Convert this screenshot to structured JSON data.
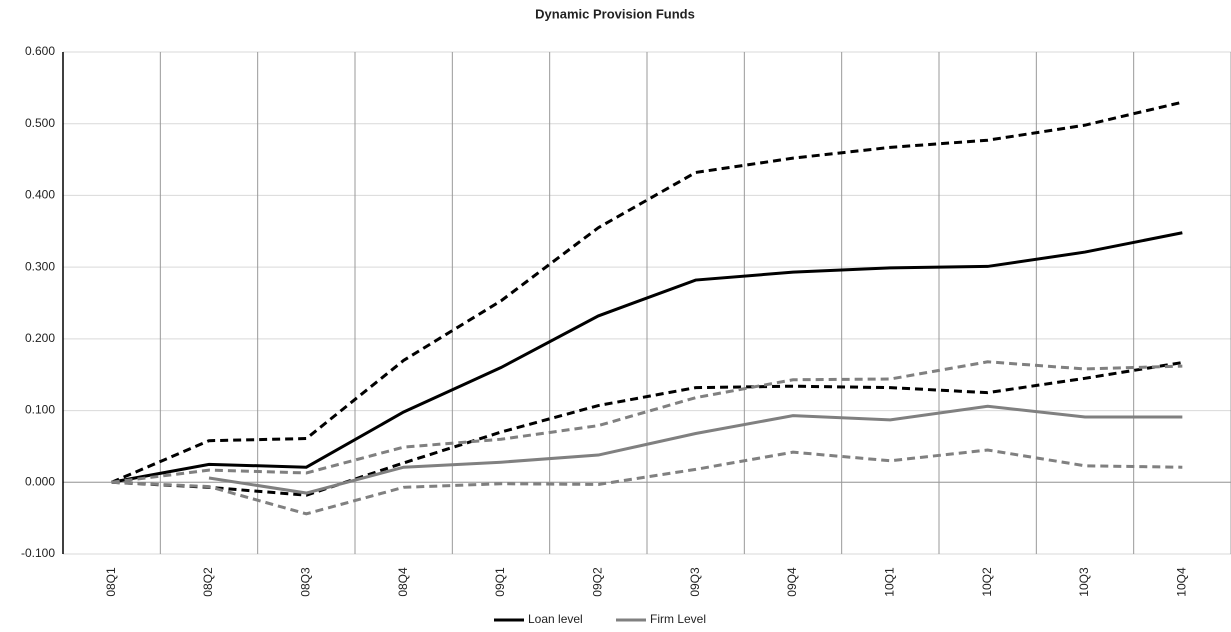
{
  "chart_data": {
    "type": "line",
    "title": "Dynamic Provision Funds",
    "categories": [
      "08Q1",
      "08Q2",
      "08Q3",
      "08Q4",
      "09Q1",
      "09Q2",
      "09Q3",
      "09Q4",
      "10Q1",
      "10Q2",
      "10Q3",
      "10Q4"
    ],
    "series": [
      {
        "name": "Loan level",
        "color": "#000000",
        "dash": false,
        "values": [
          0,
          0.025,
          0.021,
          0.098,
          0.16,
          0.232,
          0.282,
          0.293,
          0.299,
          0.301,
          0.321,
          0.348
        ]
      },
      {
        "color": "#000000",
        "dash": true,
        "values": [
          0,
          0.058,
          0.061,
          0.17,
          0.253,
          0.355,
          0.432,
          0.452,
          0.467,
          0.477,
          0.498,
          0.53
        ]
      },
      {
        "color": "#000000",
        "dash": true,
        "values": [
          0,
          -0.007,
          -0.018,
          0.027,
          0.07,
          0.107,
          0.132,
          0.134,
          0.132,
          0.125,
          0.145,
          0.167
        ]
      },
      {
        "name": "Firm Level",
        "color": "#808080",
        "dash": false,
        "values": [
          null,
          0.006,
          -0.015,
          0.021,
          0.028,
          0.038,
          0.068,
          0.093,
          0.087,
          0.106,
          0.091,
          0.091
        ]
      },
      {
        "color": "#808080",
        "dash": true,
        "values": [
          0,
          0.017,
          0.013,
          0.049,
          0.06,
          0.079,
          0.118,
          0.143,
          0.144,
          0.168,
          0.158,
          0.162
        ]
      },
      {
        "color": "#808080",
        "dash": true,
        "values": [
          0,
          -0.006,
          -0.044,
          -0.007,
          -0.002,
          -0.003,
          0.018,
          0.042,
          0.03,
          0.045,
          0.023,
          0.021
        ]
      }
    ],
    "ylim": [
      -0.1,
      0.6
    ],
    "yticks": [
      {
        "value": -0.1,
        "label": "-0.100"
      },
      {
        "value": 0,
        "label": "0.000"
      },
      {
        "value": 0.1,
        "label": "0.100"
      },
      {
        "value": 0.2,
        "label": "0.200"
      },
      {
        "value": 0.3,
        "label": "0.300"
      },
      {
        "value": 0.4,
        "label": "0.400"
      },
      {
        "value": 0.5,
        "label": "0.500"
      },
      {
        "value": 0.6,
        "label": "0.600"
      }
    ],
    "grid": true,
    "legend": "bottom"
  }
}
